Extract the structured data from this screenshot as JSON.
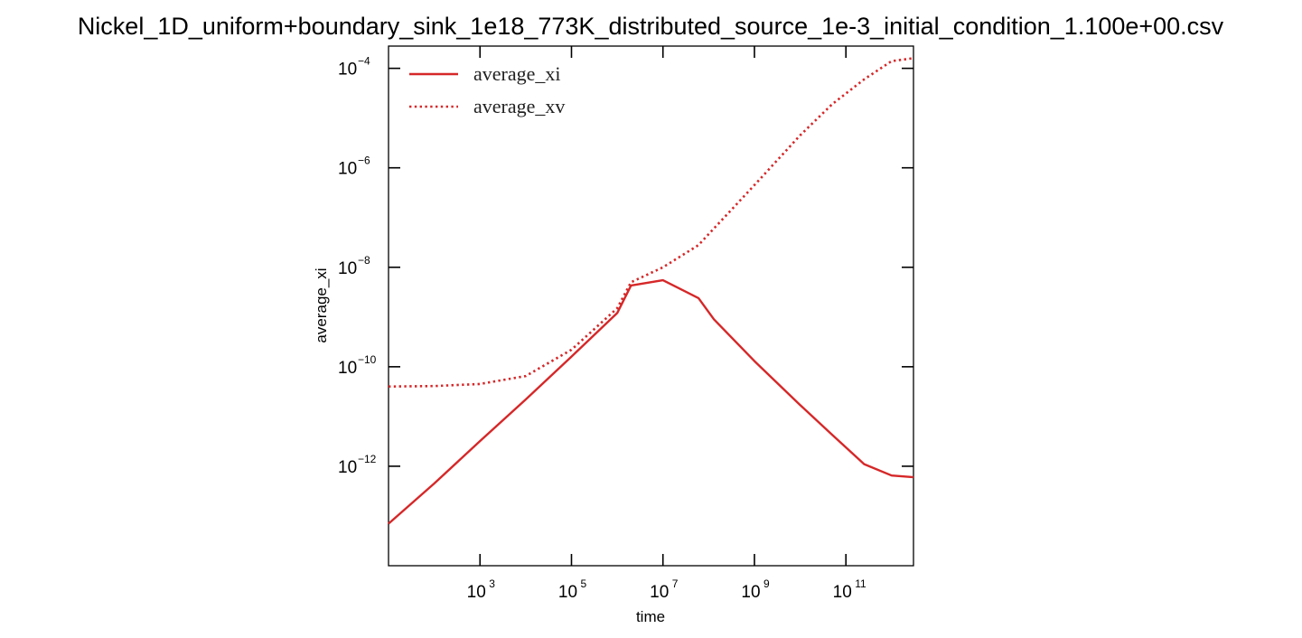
{
  "chart_data": {
    "type": "line",
    "title": "Nickel_1D_uniform+boundary_sink_1e18_773K_distributed_source_1e-3_initial_condition_1.100e+00.csv",
    "xlabel": "time",
    "ylabel": "average_xi",
    "xscale": "log",
    "yscale": "log",
    "xlim": [
      10,
      3000000000000.0
    ],
    "ylim": [
      1e-14,
      0.00028
    ],
    "xticks": [
      {
        "base": "10",
        "exp": "3",
        "value": 1000.0
      },
      {
        "base": "10",
        "exp": "5",
        "value": 100000.0
      },
      {
        "base": "10",
        "exp": "7",
        "value": 10000000.0
      },
      {
        "base": "10",
        "exp": "9",
        "value": 1000000000.0
      },
      {
        "base": "10",
        "exp": "11",
        "value": 100000000000.0
      }
    ],
    "yticks": [
      {
        "base": "10",
        "exp": "−12",
        "value": 1e-12
      },
      {
        "base": "10",
        "exp": "−10",
        "value": 1e-10
      },
      {
        "base": "10",
        "exp": "−8",
        "value": 1e-08
      },
      {
        "base": "10",
        "exp": "−6",
        "value": 1e-06
      },
      {
        "base": "10",
        "exp": "−4",
        "value": 0.0001
      }
    ],
    "grid": false,
    "legend_position": "top-left",
    "series": [
      {
        "name": "average_xi",
        "color": "#d62728",
        "style": "solid",
        "x": [
          10,
          100.0,
          1000.0,
          10000.0,
          100000.0,
          1000000.0,
          2000000.0,
          10000000.0,
          60000000.0,
          130000000.0,
          1000000000.0,
          10000000000.0,
          50000000000.0,
          250000000000.0,
          1000000000000.0,
          3000000000000.0
        ],
        "y": [
          7e-14,
          4.5e-13,
          3.2e-12,
          2.2e-11,
          1.6e-10,
          1.2e-09,
          4.3e-09,
          5.5e-09,
          2.4e-09,
          9e-10,
          1.3e-10,
          1.7e-11,
          4.3e-12,
          1.1e-12,
          6.5e-13,
          6e-13
        ]
      },
      {
        "name": "average_xv",
        "color": "#d62728",
        "style": "dotted",
        "x": [
          10,
          100.0,
          1000.0,
          10000.0,
          100000.0,
          1000000.0,
          2000000.0,
          10000000.0,
          60000000.0,
          130000000.0,
          1000000000.0,
          10000000000.0,
          50000000000.0,
          250000000000.0,
          1000000000000.0,
          3000000000000.0
        ],
        "y": [
          4e-11,
          4.1e-11,
          4.5e-11,
          6.5e-11,
          2.2e-10,
          1.5e-09,
          5e-09,
          1e-08,
          2.8e-08,
          6e-08,
          4.5e-07,
          4.5e-06,
          1.9e-05,
          6e-05,
          0.00014,
          0.00016
        ]
      }
    ]
  }
}
